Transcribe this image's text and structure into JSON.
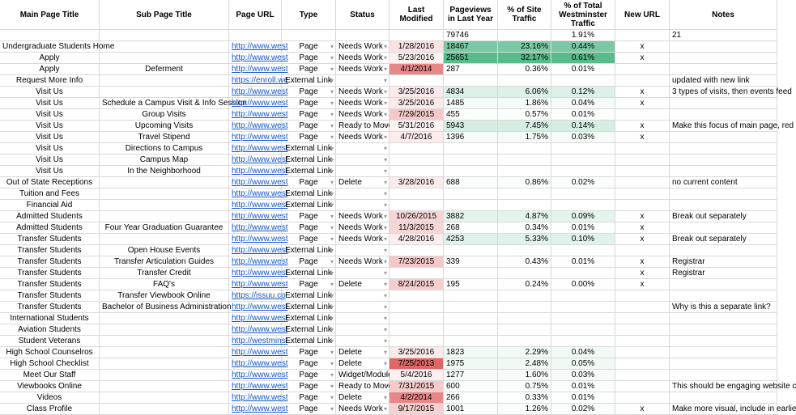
{
  "table": {
    "columns": [
      "Main Page Title",
      "Sub Page Title",
      "Page URL",
      "Type",
      "Status",
      "Last Modified",
      "Pageviews in Last Year",
      "% of Site Traffic",
      "% of Total Westminster Traffic",
      "New URL",
      "Notes"
    ],
    "totals": [
      null,
      null,
      null,
      null,
      null,
      null,
      79746,
      null,
      "1.91%",
      null,
      21
    ],
    "rows": [
      [
        "Undergraduate Students Home",
        null,
        "http://www.west",
        "Page",
        "Needs Work",
        "1/28/2016",
        18467,
        "23.16%",
        "0.44%",
        "x",
        null
      ],
      [
        "Apply",
        null,
        "http://www.west",
        "Page",
        "Needs Work",
        "5/23/2016",
        25651,
        "32.17%",
        "0.61%",
        "x",
        null
      ],
      [
        "Apply",
        "Deferment",
        "http://www.west",
        "Page",
        "Needs Work",
        "4/1/2014",
        287,
        "0.36%",
        "0.01%",
        null,
        null
      ],
      [
        "Request More Info",
        null,
        "https://enroll.we",
        "External Link",
        null,
        null,
        null,
        null,
        null,
        null,
        "updated with new link"
      ],
      [
        "Visit Us",
        null,
        "http://www.west",
        "Page",
        "Needs Work",
        "3/25/2016",
        4834,
        "6.06%",
        "0.12%",
        "x",
        "3 types of visits, then events feed"
      ],
      [
        "Visit Us",
        "Schedule a Campus Visit & Info Session",
        "http://www.west",
        "Page",
        "Needs Work",
        "3/25/2016",
        1485,
        "1.86%",
        "0.04%",
        "x",
        null
      ],
      [
        "Visit Us",
        "Group Visits",
        "http://www.west",
        "Page",
        "Needs Work",
        "7/29/2015",
        455,
        "0.57%",
        "0.01%",
        null,
        null
      ],
      [
        "Visit Us",
        "Upcoming Visits",
        "http://www.west",
        "Page",
        "Ready to Move",
        "5/31/2016",
        5943,
        "7.45%",
        "0.14%",
        "x",
        "Make this focus of main page, red"
      ],
      [
        "Visit Us",
        "Travel Stipend",
        "http://www.west",
        "Page",
        "Needs Work",
        "4/7/2016",
        1396,
        "1.75%",
        "0.03%",
        "x",
        null
      ],
      [
        "Visit Us",
        "Directions to Campus",
        "http://www.west",
        "External Link",
        null,
        null,
        null,
        null,
        null,
        null,
        null
      ],
      [
        "Visit Us",
        "Campus Map",
        "http://www.west",
        "External Link",
        null,
        null,
        null,
        null,
        null,
        null,
        null
      ],
      [
        "Visit Us",
        "In the Neighborhood",
        "http://www.west",
        "External Link",
        null,
        null,
        null,
        null,
        null,
        null,
        null
      ],
      [
        "Out of State Receptions",
        null,
        "http://www.west",
        "Page",
        "Delete",
        "3/28/2016",
        688,
        "0.86%",
        "0.02%",
        null,
        "no current content"
      ],
      [
        "Tuition and Fees",
        null,
        "http://www.west",
        "External Link",
        null,
        null,
        null,
        null,
        null,
        null,
        null
      ],
      [
        "Financial Aid",
        null,
        "http://www.west",
        "External Link",
        null,
        null,
        null,
        null,
        null,
        null,
        null
      ],
      [
        "Admitted Students",
        null,
        "http://www.west",
        "Page",
        "Needs Work",
        "10/26/2015",
        3882,
        "4.87%",
        "0.09%",
        "x",
        "Break out separately"
      ],
      [
        "Admitted Students",
        "Four Year Graduation Guarantee",
        "http://www.west",
        "Page",
        "Needs Work",
        "11/3/2015",
        268,
        "0.34%",
        "0.01%",
        "x",
        null
      ],
      [
        "Transfer Students",
        null,
        "http://www.west",
        "Page",
        "Needs Work",
        "4/28/2016",
        4253,
        "5.33%",
        "0.10%",
        "x",
        "Break out separately"
      ],
      [
        "Transfer Students",
        "Open House Events",
        "http://www.west",
        "External Link",
        null,
        null,
        null,
        null,
        null,
        null,
        null
      ],
      [
        "Transfer Students",
        "Transfer Articulation Guides",
        "http://www.west",
        "Page",
        "Needs Work",
        "7/23/2015",
        339,
        "0.43%",
        "0.01%",
        "x",
        "Registrar"
      ],
      [
        "Transfer Students",
        "Transfer Credit",
        "http://www.west",
        "External Link",
        null,
        null,
        null,
        null,
        null,
        "x",
        "Registrar"
      ],
      [
        "Transfer Students",
        "FAQ's",
        "http://www.west",
        "Page",
        "Delete",
        "8/24/2015",
        195,
        "0.24%",
        "0.00%",
        "x",
        null
      ],
      [
        "Transfer Students",
        "Transfer Viewbook Online",
        "https://issuu.co",
        "External Link",
        null,
        null,
        null,
        null,
        null,
        null,
        null
      ],
      [
        "Transfer Students",
        "Bachelor of Business Administration",
        "http://www.west",
        "External Link",
        null,
        null,
        null,
        null,
        null,
        null,
        "Why is this a separate link?"
      ],
      [
        "International Students",
        null,
        "http://www.west",
        "External Link",
        null,
        null,
        null,
        null,
        null,
        null,
        null
      ],
      [
        "Aviation Students",
        null,
        "http://www.west",
        "External Link",
        null,
        null,
        null,
        null,
        null,
        null,
        null
      ],
      [
        "Student Veterans",
        null,
        "http://westminst",
        "External Link",
        null,
        null,
        null,
        null,
        null,
        null,
        null
      ],
      [
        "High School Counselros",
        null,
        "http://www.west",
        "Page",
        "Delete",
        "3/25/2016",
        1823,
        "2.29%",
        "0.04%",
        null,
        null
      ],
      [
        "High School Checklist",
        null,
        "http://www.west",
        "Page",
        "Delete",
        "7/25/2013",
        1975,
        "2.48%",
        "0.05%",
        null,
        null
      ],
      [
        "Meet Our Staff",
        null,
        "http://www.west",
        "Page",
        "Widget/Module",
        "5/4/2016",
        1277,
        "1.60%",
        "0.03%",
        null,
        null
      ],
      [
        "Viewbooks Online",
        null,
        "http://www.west",
        "Page",
        "Ready to Move",
        "7/31/2015",
        600,
        "0.75%",
        "0.01%",
        null,
        "This should be engaging website c"
      ],
      [
        "Videos",
        null,
        "http://www.west",
        "Page",
        "Delete",
        "4/2/2014",
        266,
        "0.33%",
        "0.01%",
        null,
        null
      ],
      [
        "Class Profile",
        null,
        "http://www.west",
        "Page",
        "Needs Work",
        "9/17/2015",
        1001,
        "1.26%",
        "0.02%",
        "x",
        "Make more visual, include in earlie"
      ]
    ]
  }
}
